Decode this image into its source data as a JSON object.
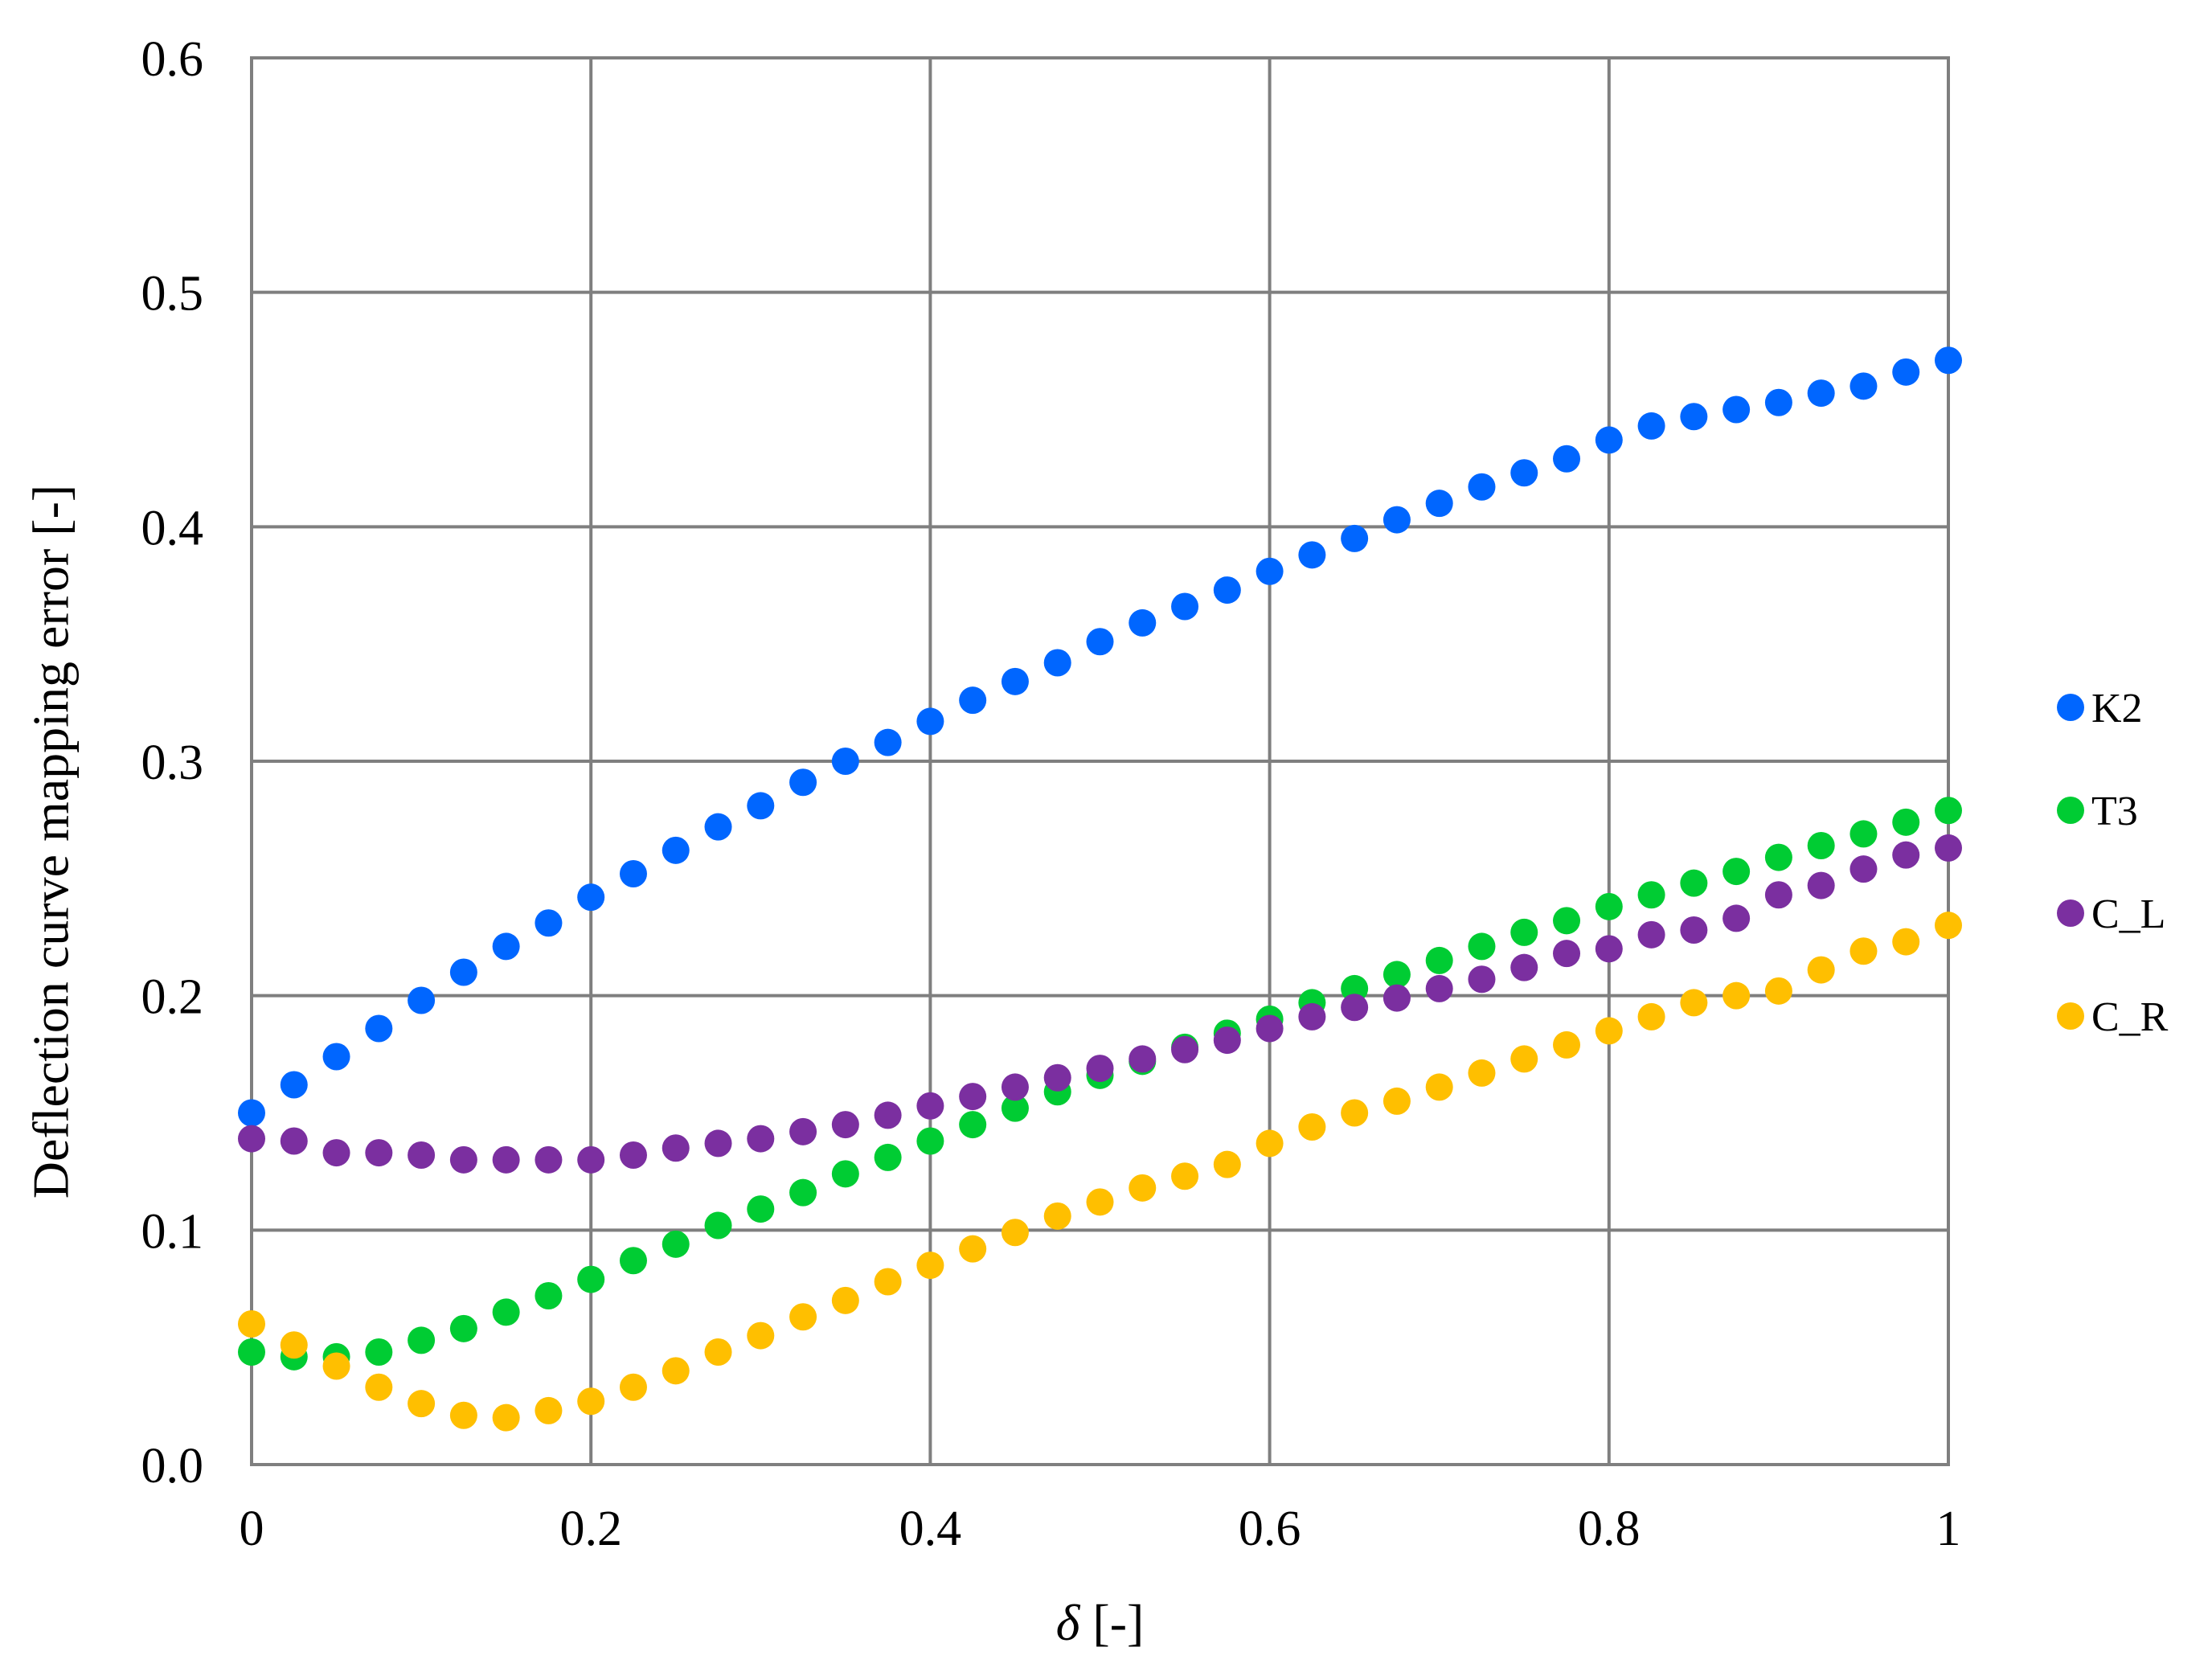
{
  "chart_data": {
    "type": "scatter",
    "title": "",
    "xlabel_symbol": "δ",
    "xlabel_unit": " [-]",
    "ylabel": "Deflection curve mapping error [-]",
    "xlim": [
      0,
      1
    ],
    "ylim": [
      0,
      0.6
    ],
    "grid": true,
    "legend_position": "right",
    "x_ticks": [
      {
        "value": 0,
        "label": "0"
      },
      {
        "value": 0.2,
        "label": "0.2"
      },
      {
        "value": 0.4,
        "label": "0.4"
      },
      {
        "value": 0.6,
        "label": "0.6"
      },
      {
        "value": 0.8,
        "label": "0.8"
      },
      {
        "value": 1,
        "label": "1"
      }
    ],
    "y_ticks": [
      {
        "value": 0,
        "label": "0.0"
      },
      {
        "value": 0.1,
        "label": "0.1"
      },
      {
        "value": 0.2,
        "label": "0.2"
      },
      {
        "value": 0.3,
        "label": "0.3"
      },
      {
        "value": 0.4,
        "label": "0.4"
      },
      {
        "value": 0.5,
        "label": "0.5"
      },
      {
        "value": 0.6,
        "label": "0.6"
      }
    ],
    "x": [
      0,
      0.025,
      0.05,
      0.075,
      0.1,
      0.125,
      0.15,
      0.175,
      0.2,
      0.225,
      0.25,
      0.275,
      0.3,
      0.325,
      0.35,
      0.375,
      0.4,
      0.425,
      0.45,
      0.475,
      0.5,
      0.525,
      0.55,
      0.575,
      0.6,
      0.625,
      0.65,
      0.675,
      0.7,
      0.725,
      0.75,
      0.775,
      0.8,
      0.825,
      0.85,
      0.875,
      0.9,
      0.925,
      0.95,
      0.975,
      1
    ],
    "series": [
      {
        "name": "K2",
        "color": "#0066ff",
        "values": [
          0.15,
          0.162,
          0.174,
          0.186,
          0.198,
          0.21,
          0.221,
          0.231,
          0.242,
          0.252,
          0.262,
          0.272,
          0.281,
          0.291,
          0.3,
          0.308,
          0.317,
          0.326,
          0.334,
          0.342,
          0.351,
          0.359,
          0.366,
          0.373,
          0.381,
          0.388,
          0.395,
          0.403,
          0.41,
          0.417,
          0.423,
          0.429,
          0.437,
          0.443,
          0.447,
          0.45,
          0.453,
          0.457,
          0.46,
          0.466,
          0.471
        ]
      },
      {
        "name": "T3",
        "color": "#00cc33",
        "values": [
          0.048,
          0.046,
          0.046,
          0.048,
          0.053,
          0.058,
          0.065,
          0.072,
          0.079,
          0.087,
          0.094,
          0.102,
          0.109,
          0.116,
          0.124,
          0.131,
          0.138,
          0.145,
          0.152,
          0.159,
          0.166,
          0.172,
          0.178,
          0.184,
          0.19,
          0.197,
          0.203,
          0.209,
          0.215,
          0.221,
          0.227,
          0.232,
          0.238,
          0.243,
          0.248,
          0.253,
          0.259,
          0.264,
          0.269,
          0.274,
          0.279
        ]
      },
      {
        "name": "C_L",
        "color": "#7b2fa0",
        "values": [
          0.139,
          0.138,
          0.133,
          0.133,
          0.132,
          0.13,
          0.13,
          0.13,
          0.13,
          0.132,
          0.135,
          0.137,
          0.139,
          0.142,
          0.145,
          0.149,
          0.153,
          0.157,
          0.161,
          0.165,
          0.169,
          0.173,
          0.177,
          0.181,
          0.186,
          0.191,
          0.195,
          0.199,
          0.203,
          0.207,
          0.212,
          0.218,
          0.22,
          0.226,
          0.228,
          0.233,
          0.243,
          0.247,
          0.254,
          0.26,
          0.263
        ]
      },
      {
        "name": "C_R",
        "color": "#ffbf00",
        "values": [
          0.06,
          0.051,
          0.042,
          0.033,
          0.026,
          0.021,
          0.02,
          0.023,
          0.027,
          0.033,
          0.04,
          0.048,
          0.055,
          0.063,
          0.07,
          0.078,
          0.085,
          0.092,
          0.099,
          0.106,
          0.112,
          0.118,
          0.123,
          0.128,
          0.137,
          0.144,
          0.15,
          0.155,
          0.161,
          0.167,
          0.173,
          0.179,
          0.185,
          0.191,
          0.197,
          0.2,
          0.202,
          0.211,
          0.219,
          0.223,
          0.23
        ]
      }
    ]
  }
}
